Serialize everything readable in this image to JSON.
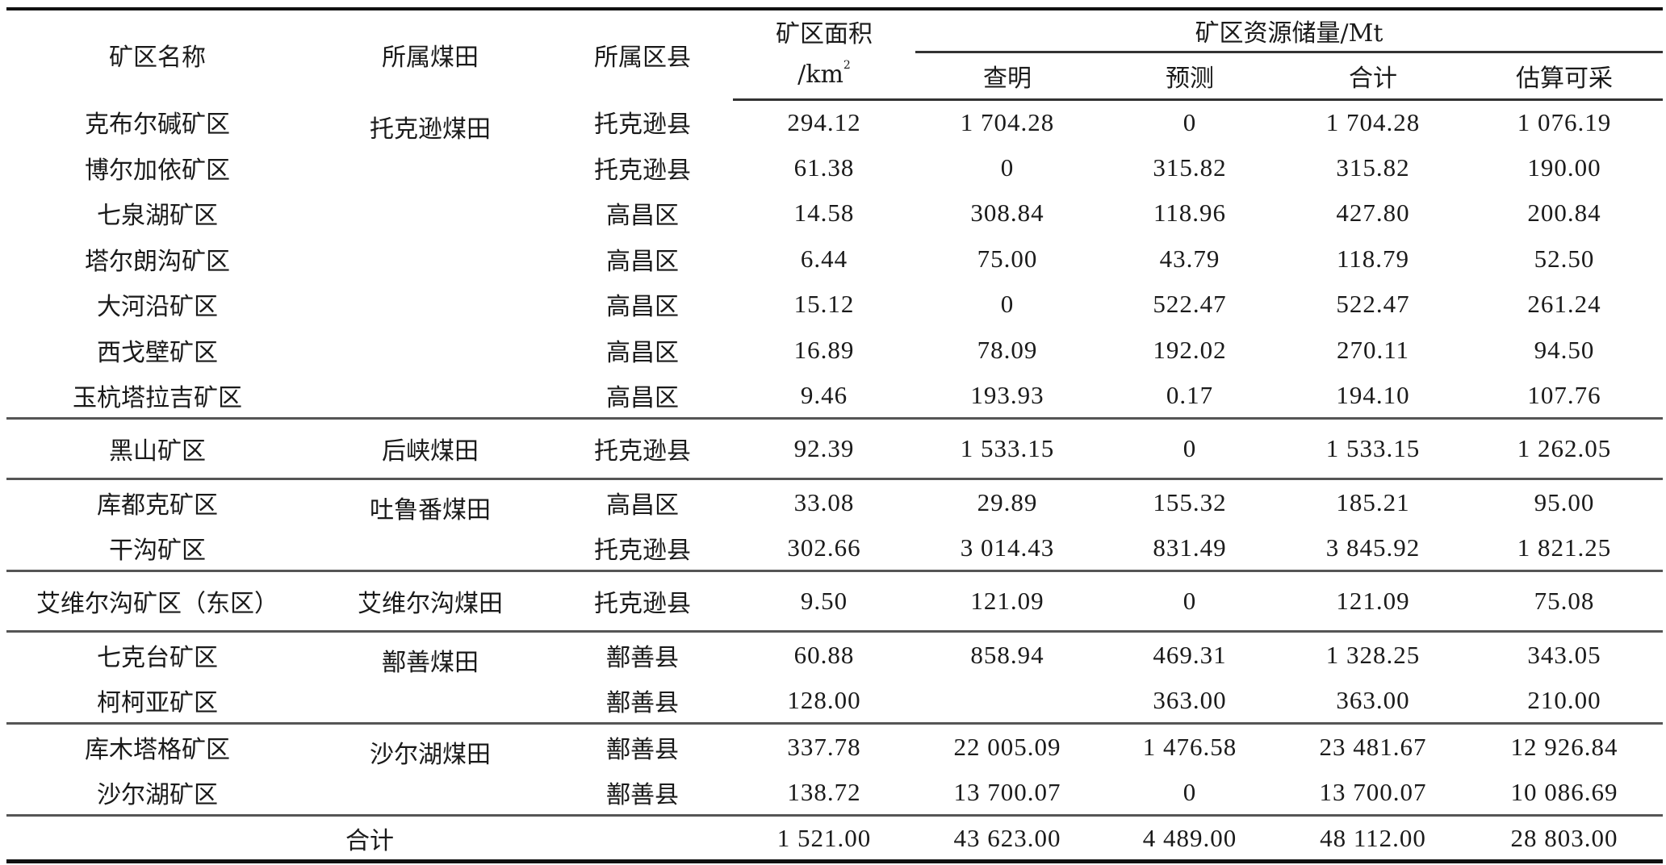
{
  "header": {
    "name": "矿区名称",
    "field": "所属煤田",
    "county": "所属区县",
    "area_line1": "矿区面积",
    "area_line2": "/km",
    "area_sup": "2",
    "reserves": "矿区资源储量/Mt",
    "proven": "查明",
    "predicted": "预测",
    "total": "合计",
    "recoverable": "估算可采"
  },
  "groups": [
    {
      "field": "托克逊煤田",
      "rows": [
        {
          "name": "克布尔碱矿区",
          "county": "托克逊县",
          "area": "294.12",
          "proven": "1 704.28",
          "predicted": "0",
          "total": "1 704.28",
          "recoverable": "1 076.19"
        },
        {
          "name": "博尔加依矿区",
          "county": "托克逊县",
          "area": "61.38",
          "proven": "0",
          "predicted": "315.82",
          "total": "315.82",
          "recoverable": "190.00"
        },
        {
          "name": "七泉湖矿区",
          "county": "高昌区",
          "area": "14.58",
          "proven": "308.84",
          "predicted": "118.96",
          "total": "427.80",
          "recoverable": "200.84"
        },
        {
          "name": "塔尔朗沟矿区",
          "county": "高昌区",
          "area": "6.44",
          "proven": "75.00",
          "predicted": "43.79",
          "total": "118.79",
          "recoverable": "52.50"
        },
        {
          "name": "大河沿矿区",
          "county": "高昌区",
          "area": "15.12",
          "proven": "0",
          "predicted": "522.47",
          "total": "522.47",
          "recoverable": "261.24"
        },
        {
          "name": "西戈壁矿区",
          "county": "高昌区",
          "area": "16.89",
          "proven": "78.09",
          "predicted": "192.02",
          "total": "270.11",
          "recoverable": "94.50"
        },
        {
          "name": "玉杭塔拉吉矿区",
          "county": "高昌区",
          "area": "9.46",
          "proven": "193.93",
          "predicted": "0.17",
          "total": "194.10",
          "recoverable": "107.76"
        }
      ]
    },
    {
      "field": "后峡煤田",
      "rows": [
        {
          "name": "黑山矿区",
          "county": "托克逊县",
          "area": "92.39",
          "proven": "1 533.15",
          "predicted": "0",
          "total": "1 533.15",
          "recoverable": "1 262.05"
        }
      ]
    },
    {
      "field": "吐鲁番煤田",
      "rows": [
        {
          "name": "库都克矿区",
          "county": "高昌区",
          "area": "33.08",
          "proven": "29.89",
          "predicted": "155.32",
          "total": "185.21",
          "recoverable": "95.00"
        },
        {
          "name": "干沟矿区",
          "county": "托克逊县",
          "area": "302.66",
          "proven": "3 014.43",
          "predicted": "831.49",
          "total": "3 845.92",
          "recoverable": "1 821.25"
        }
      ]
    },
    {
      "field": "艾维尔沟煤田",
      "rows": [
        {
          "name": "艾维尔沟矿区（东区）",
          "county": "托克逊县",
          "area": "9.50",
          "proven": "121.09",
          "predicted": "0",
          "total": "121.09",
          "recoverable": "75.08"
        }
      ]
    },
    {
      "field": "鄯善煤田",
      "rows": [
        {
          "name": "七克台矿区",
          "county": "鄯善县",
          "area": "60.88",
          "proven": "858.94",
          "predicted": "469.31",
          "total": "1 328.25",
          "recoverable": "343.05"
        },
        {
          "name": "柯柯亚矿区",
          "county": "鄯善县",
          "area": "128.00",
          "proven": "",
          "predicted": "363.00",
          "total": "363.00",
          "recoverable": "210.00"
        }
      ]
    },
    {
      "field": "沙尔湖煤田",
      "rows": [
        {
          "name": "库木塔格矿区",
          "county": "鄯善县",
          "area": "337.78",
          "proven": "22 005.09",
          "predicted": "1 476.58",
          "total": "23 481.67",
          "recoverable": "12 926.84"
        },
        {
          "name": "沙尔湖矿区",
          "county": "鄯善县",
          "area": "138.72",
          "proven": "13 700.07",
          "predicted": "0",
          "total": "13 700.07",
          "recoverable": "10 086.69"
        }
      ]
    }
  ],
  "totals": {
    "label": "合计",
    "area": "1 521.00",
    "proven": "43 623.00",
    "predicted": "4 489.00",
    "total": "48 112.00",
    "recoverable": "28 803.00"
  }
}
